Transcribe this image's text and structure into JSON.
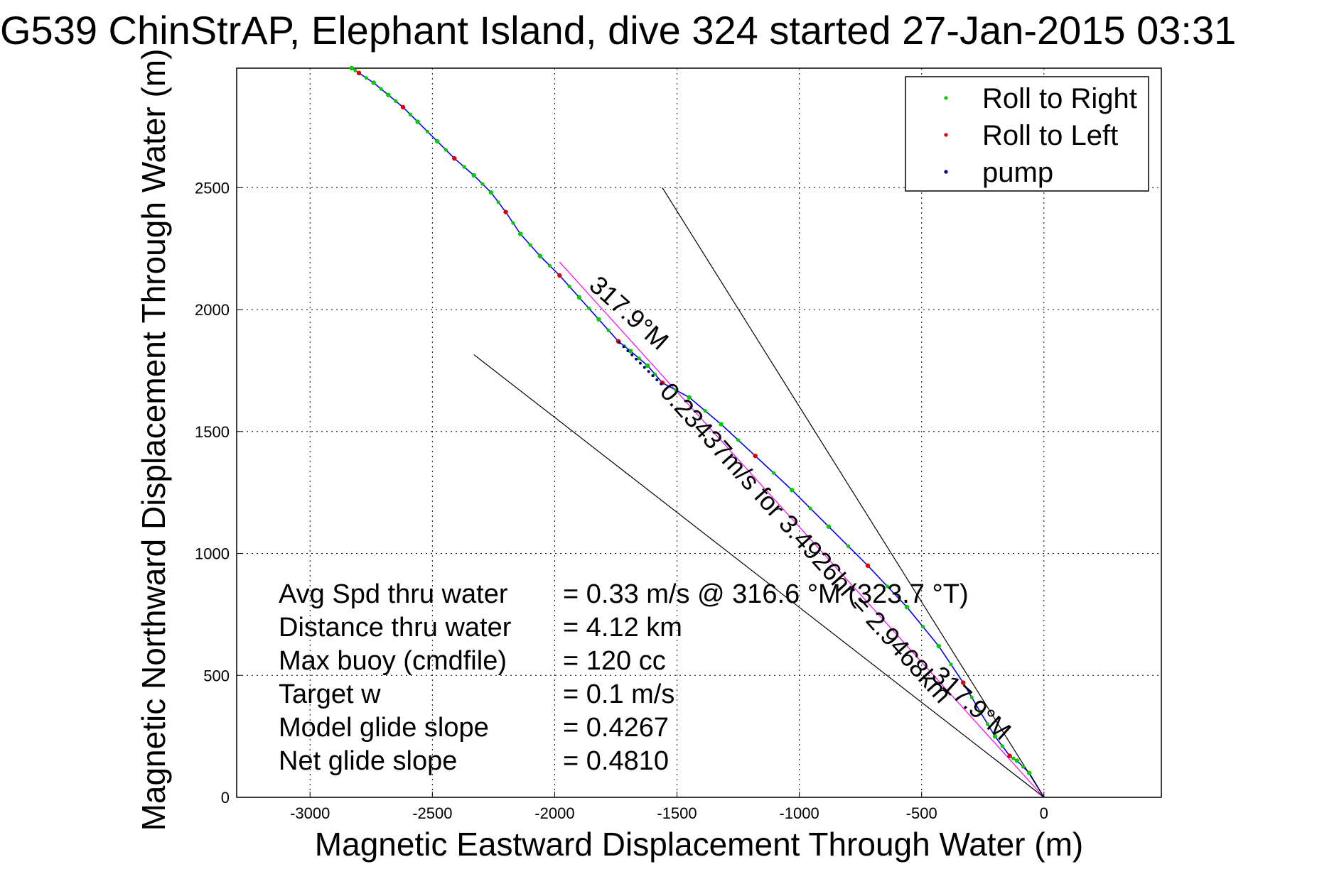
{
  "chart_data": {
    "type": "line",
    "title": "G539 ChinStrAP, Elephant Island, dive 324 started 27-Jan-2015 03:31",
    "xlabel": "Magnetic Eastward Displacement Through Water (m)",
    "ylabel": "Magnetic Northward Displacement Through Water (m)",
    "xlim": [
      -3300,
      480
    ],
    "ylim": [
      0,
      2990
    ],
    "xticks": [
      -3000,
      -2500,
      -2000,
      -1500,
      -1000,
      -500,
      0
    ],
    "yticks": [
      0,
      500,
      1000,
      1500,
      2000,
      2500
    ],
    "grid": true,
    "legend_position": "top-right",
    "legend": [
      {
        "label": "Roll to Right",
        "color": "#00cc00"
      },
      {
        "label": "Roll to Left",
        "color": "#dd0000"
      },
      {
        "label": "pump",
        "color": "#000080"
      }
    ],
    "series": [
      {
        "name": "track",
        "color": "#0000ff",
        "x": [
          0,
          -60,
          -110,
          -140,
          -200,
          -260,
          -330,
          -430,
          -560,
          -720,
          -880,
          -1030,
          -1180,
          -1320,
          -1450,
          -1560,
          -1620,
          -1690,
          -1740,
          -1820,
          -1900,
          -1980,
          -2060,
          -2140,
          -2200,
          -2260,
          -2330,
          -2410,
          -2480,
          -2560,
          -2620,
          -2680,
          -2740,
          -2800,
          -2830
        ],
        "y": [
          0,
          100,
          150,
          170,
          250,
          350,
          470,
          620,
          780,
          950,
          1110,
          1260,
          1400,
          1530,
          1640,
          1700,
          1770,
          1830,
          1870,
          1960,
          2050,
          2140,
          2220,
          2310,
          2400,
          2480,
          2550,
          2620,
          2690,
          2770,
          2830,
          2880,
          2930,
          2970,
          2990
        ]
      },
      {
        "name": "heading line",
        "color": "#ff00ff",
        "x": [
          0,
          -1980
        ],
        "y": [
          0,
          2195
        ]
      },
      {
        "name": "heading line",
        "color": "#000000",
        "x": [
          0,
          -1560
        ],
        "y": [
          0,
          2500
        ]
      },
      {
        "name": "heading line",
        "color": "#000000",
        "x": [
          0,
          -2330
        ],
        "y": [
          0,
          1815
        ]
      }
    ],
    "annotations": [
      {
        "text": "317.9°M",
        "x": -1720,
        "y": 1960,
        "angle": 42
      },
      {
        "text": "0.23437m/s for 3.4926hr = 2.9468km",
        "x": -1000,
        "y": 1020,
        "angle": 48
      },
      {
        "text": "317.9°M",
        "x": -320,
        "y": 360,
        "angle": 42
      }
    ],
    "stats": [
      {
        "label": "Avg Spd thru water",
        "value": "=  0.33 m/s @ 316.6 °M (323.7 °T)"
      },
      {
        "label": "Distance thru water",
        "value": "=  4.12 km"
      },
      {
        "label": "Max buoy (cmdfile)",
        "value": "= 120 cc"
      },
      {
        "label": "Target w",
        "value": "= 0.1 m/s"
      },
      {
        "label": "Model glide slope",
        "value": "= 0.4267"
      },
      {
        "label": "Net glide slope",
        "value": "= 0.4810"
      }
    ]
  }
}
